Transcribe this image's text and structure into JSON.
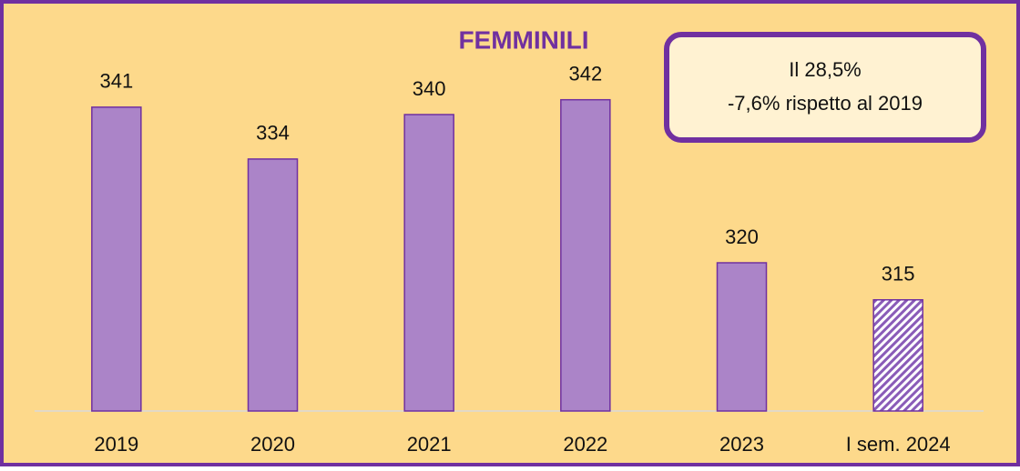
{
  "chart_data": {
    "type": "bar",
    "title": "FEMMINILI",
    "annotation": [
      "Il 28,5%",
      "-7,6% rispetto al 2019"
    ],
    "categories": [
      "2019",
      "2020",
      "2021",
      "2022",
      "2023",
      "I sem. 2024"
    ],
    "values": [
      341,
      334,
      340,
      342,
      320,
      315
    ],
    "hatched": [
      false,
      false,
      false,
      false,
      false,
      true
    ],
    "color": "#ab84c8",
    "ylim": [
      300,
      350
    ]
  }
}
